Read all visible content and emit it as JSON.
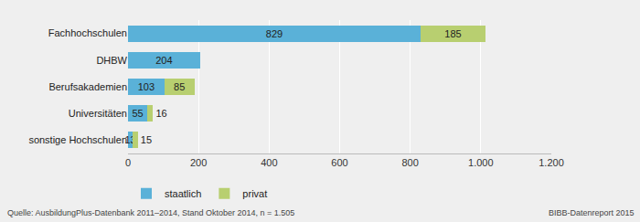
{
  "chart_data": {
    "type": "bar",
    "orientation": "horizontal",
    "stacked": true,
    "data_labels": true,
    "grid": true,
    "legend": "bottom",
    "categories": [
      "Fachhochschulen",
      "DHBW",
      "Berufsakademien",
      "Universitäten",
      "sonstige Hochschulen"
    ],
    "series": [
      {
        "name": "staatlich",
        "color": "#5ab1d8",
        "values": [
          829,
          204,
          103,
          55,
          13
        ]
      },
      {
        "name": "privat",
        "color": "#b8cf70",
        "values": [
          185,
          0,
          85,
          16,
          15
        ]
      }
    ],
    "xlim": [
      0,
      1200
    ],
    "xticks": [
      0,
      200,
      400,
      600,
      800,
      {
        "value": 1000,
        "label": "1.000"
      },
      {
        "value": 1200,
        "label": "1.200"
      }
    ],
    "annotations": [
      "Quelle: AusbildungPlus-Datenbank 2011–2014, Stand Oktober 2014, n = 1.505",
      "BIBB-Datenreport 2015"
    ]
  }
}
